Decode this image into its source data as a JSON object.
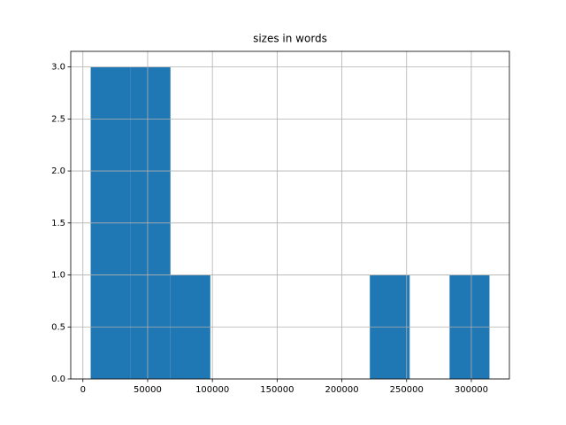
{
  "chart_data": {
    "type": "histogram",
    "title": "sizes in words",
    "bins": [
      6000,
      36800,
      67600,
      98400,
      129200,
      160000,
      190800,
      221600,
      252400,
      283200,
      314000
    ],
    "counts": [
      3,
      3,
      1,
      0,
      0,
      0,
      0,
      1,
      0,
      1
    ],
    "color": "#1f77b4",
    "xlim": [
      -9400,
      329400
    ],
    "xticks": [
      0,
      50000,
      100000,
      150000,
      200000,
      250000,
      300000
    ],
    "ylim": [
      0,
      3.15
    ],
    "yticks": [
      {
        "value": 0,
        "label": "0.0"
      },
      {
        "value": 0.5,
        "label": "0.5"
      },
      {
        "value": 1,
        "label": "1.0"
      },
      {
        "value": 1.5,
        "label": "1.5"
      },
      {
        "value": 2,
        "label": "2.0"
      },
      {
        "value": 2.5,
        "label": "2.5"
      },
      {
        "value": 3,
        "label": "3.0"
      }
    ],
    "grid": true
  }
}
